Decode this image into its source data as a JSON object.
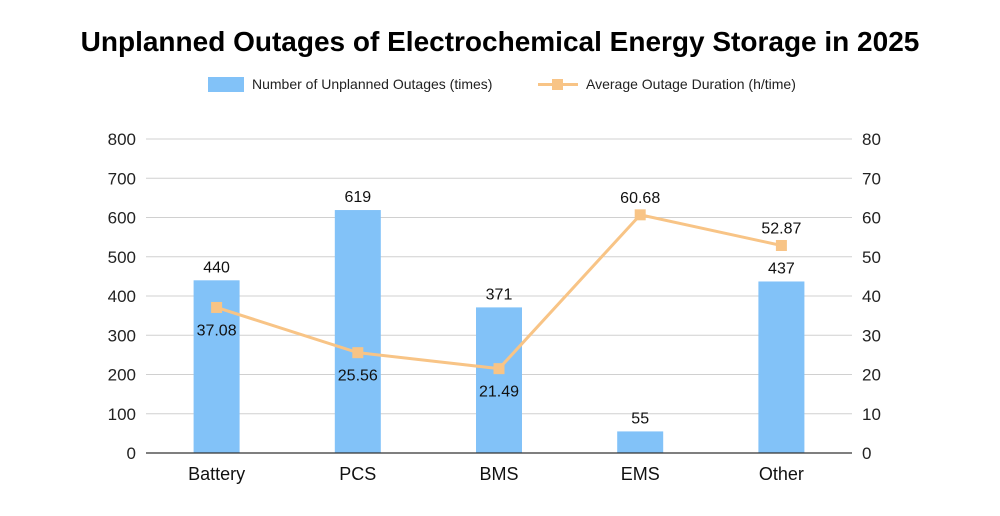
{
  "chart_data": {
    "type": "bar",
    "title": "Unplanned Outages of Electrochemical Energy Storage in 2025",
    "categories": [
      "Battery",
      "PCS",
      "BMS",
      "EMS",
      "Other"
    ],
    "series": [
      {
        "name": "Number of Unplanned Outages (times)",
        "type": "bar",
        "axis": "left",
        "values": [
          440,
          619,
          371,
          55,
          437
        ],
        "color": "#82c2f8"
      },
      {
        "name": "Average Outage Duration (h/time)",
        "type": "line",
        "axis": "right",
        "values": [
          37.08,
          25.56,
          21.49,
          60.68,
          52.87
        ],
        "color": "#f8c486"
      }
    ],
    "ylim_left": [
      0,
      800
    ],
    "yticks_left": [
      0,
      100,
      200,
      300,
      400,
      500,
      600,
      700,
      800
    ],
    "ylim_right": [
      0,
      80
    ],
    "yticks_right": [
      0,
      10,
      20,
      30,
      40,
      50,
      60,
      70,
      80
    ],
    "grid": true,
    "legend_position": "top"
  }
}
